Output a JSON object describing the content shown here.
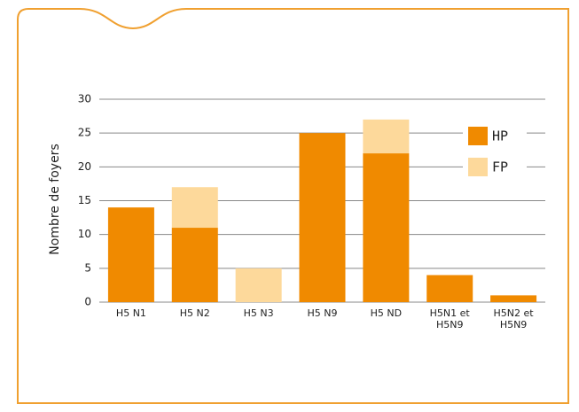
{
  "chart_data": {
    "type": "stacked-bar",
    "y_label": "Nombre de foyers",
    "categories": [
      "H5 N1",
      "H5 N2",
      "H5 N3",
      "H5 N9",
      "H5 ND",
      "H5N1 et H5N9",
      "H5N2 et H5N9"
    ],
    "series": [
      {
        "name": "HP",
        "color": "#f08a00",
        "values": [
          14,
          11,
          0,
          25,
          22,
          4,
          1
        ]
      },
      {
        "name": "FP",
        "color": "#fdd99b",
        "values": [
          0,
          6,
          5,
          0,
          5,
          0,
          0
        ]
      }
    ],
    "ylim": [
      0,
      30
    ],
    "yticks": [
      0,
      5,
      10,
      15,
      20,
      25,
      30
    ],
    "grid": true,
    "legend": "top-right"
  }
}
